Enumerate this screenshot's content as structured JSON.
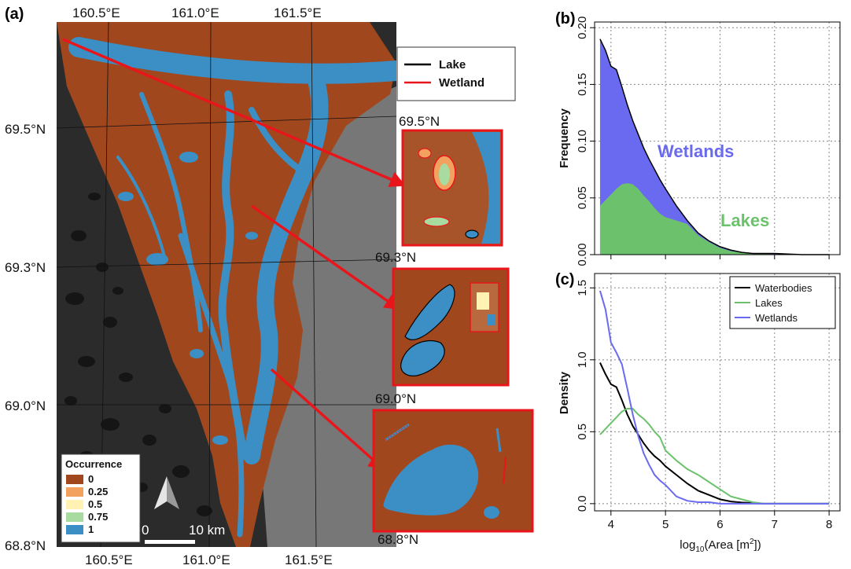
{
  "panels": {
    "a": "(a)",
    "b": "(b)",
    "c": "(c)"
  },
  "map": {
    "top_lon_labels": [
      "160.5°E",
      "161.0°E",
      "161.5°E"
    ],
    "bottom_lon_labels": [
      "160.5°E",
      "161.0°E",
      "161.5°E"
    ],
    "lat_labels": [
      "69.5°N",
      "69.3°N",
      "69.0°N",
      "68.8°N"
    ],
    "inset_lat_labels": [
      "69.5°N",
      "69.3°N",
      "69.0°N",
      "68.8°N"
    ],
    "colors": {
      "dark_bg": "#2a2a2a",
      "grey_bg": "#6e6e6e",
      "land": "#a0471e",
      "water": "#3b8fc4",
      "arrow": "#e8161b"
    },
    "outline_legend": {
      "lake": "Lake",
      "wetland": "Wetland",
      "lake_color": "#000000",
      "wetland_color": "#e8161b"
    },
    "occurrence_legend": {
      "title": "Occurrence",
      "items": [
        {
          "label": "0",
          "color": "#a0471e"
        },
        {
          "label": "0.25",
          "color": "#f3a15f"
        },
        {
          "label": "0.5",
          "color": "#fff2b3"
        },
        {
          "label": "0.75",
          "color": "#a8dba0"
        },
        {
          "label": "1",
          "color": "#3b8fc4"
        }
      ]
    },
    "scale_bar": {
      "zero": "0",
      "distance": "10 km"
    },
    "north_arrow_icon": "north-arrow-icon"
  },
  "chart_data": [
    {
      "panel": "(b)",
      "type": "area",
      "xlabel": "",
      "ylabel": "Frequency",
      "xlim": [
        3.7,
        8.2
      ],
      "ylim": [
        0,
        0.205
      ],
      "x_ticks": [
        4,
        5,
        6,
        7,
        8
      ],
      "y_ticks": [
        0.0,
        0.05,
        0.1,
        0.15,
        0.2
      ],
      "y_tick_labels": [
        "0.00",
        "0.05",
        "0.10",
        "0.15",
        "0.20"
      ],
      "grid": true,
      "x": [
        3.8,
        3.9,
        4.0,
        4.1,
        4.2,
        4.3,
        4.4,
        4.5,
        4.6,
        4.7,
        4.8,
        4.9,
        5.0,
        5.2,
        5.4,
        5.6,
        5.8,
        6.0,
        6.2,
        6.4,
        6.6,
        6.8,
        7.0,
        7.5,
        8.0
      ],
      "series": [
        {
          "name": "Wetlands",
          "color": "#6a6af0",
          "values": [
            0.19,
            0.18,
            0.166,
            0.163,
            0.148,
            0.132,
            0.118,
            0.106,
            0.094,
            0.084,
            0.075,
            0.066,
            0.058,
            0.043,
            0.03,
            0.019,
            0.012,
            0.007,
            0.004,
            0.002,
            0.001,
            0.001,
            0.001,
            0.0,
            0.0
          ]
        },
        {
          "name": "Lakes",
          "color": "#6cc26c",
          "values": [
            0.043,
            0.048,
            0.053,
            0.058,
            0.062,
            0.063,
            0.062,
            0.058,
            0.052,
            0.047,
            0.041,
            0.036,
            0.033,
            0.03,
            0.027,
            0.017,
            0.011,
            0.006,
            0.003,
            0.002,
            0.001,
            0.001,
            0.0,
            0.0,
            0.0
          ]
        }
      ],
      "annotations": [
        "Wetlands",
        "Lakes"
      ]
    },
    {
      "panel": "(c)",
      "type": "line",
      "xlabel": "log10(Area [m2])",
      "ylabel": "Density",
      "xlim": [
        3.7,
        8.2
      ],
      "ylim": [
        -0.05,
        1.6
      ],
      "x_ticks": [
        4,
        5,
        6,
        7,
        8
      ],
      "y_ticks": [
        0.0,
        0.5,
        1.0,
        1.5
      ],
      "y_tick_labels": [
        "0.0",
        "0.5",
        "1.0",
        "1.5"
      ],
      "grid": true,
      "legend_position": "top-right",
      "x": [
        3.8,
        3.9,
        4.0,
        4.1,
        4.2,
        4.3,
        4.4,
        4.5,
        4.6,
        4.7,
        4.8,
        4.9,
        5.0,
        5.2,
        5.4,
        5.6,
        5.8,
        6.0,
        6.2,
        6.4,
        6.6,
        6.8,
        7.0,
        7.5,
        8.0
      ],
      "series": [
        {
          "name": "Waterbodies",
          "color": "#000000",
          "values": [
            0.98,
            0.9,
            0.83,
            0.81,
            0.72,
            0.62,
            0.54,
            0.48,
            0.42,
            0.37,
            0.33,
            0.3,
            0.26,
            0.2,
            0.14,
            0.09,
            0.06,
            0.03,
            0.015,
            0.008,
            0.004,
            0.0,
            0.0,
            0.0,
            0.0
          ]
        },
        {
          "name": "Lakes",
          "color": "#6cc26c",
          "values": [
            0.48,
            0.52,
            0.56,
            0.6,
            0.64,
            0.66,
            0.66,
            0.62,
            0.59,
            0.55,
            0.5,
            0.46,
            0.37,
            0.3,
            0.24,
            0.2,
            0.15,
            0.1,
            0.05,
            0.03,
            0.01,
            0.0,
            0.0,
            0.0,
            0.0
          ]
        },
        {
          "name": "Wetlands",
          "color": "#6a6af0",
          "values": [
            1.48,
            1.35,
            1.12,
            1.05,
            0.97,
            0.8,
            0.62,
            0.47,
            0.35,
            0.27,
            0.2,
            0.16,
            0.13,
            0.05,
            0.02,
            0.01,
            0.01,
            0.0,
            0.0,
            0.0,
            0.0,
            0.0,
            0.0,
            0.0,
            0.0
          ]
        }
      ]
    }
  ]
}
